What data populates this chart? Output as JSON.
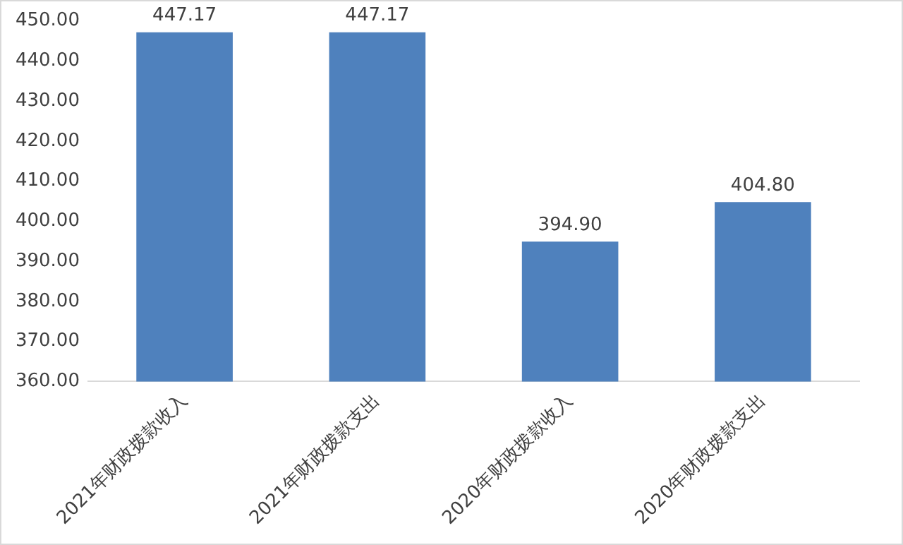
{
  "chart_data": {
    "type": "bar",
    "categories": [
      "2021年财政拨款收入",
      "2021年财政拨款支出",
      "2020年财政拨款收入",
      "2020年财政拨款支出"
    ],
    "values": [
      447.17,
      447.17,
      394.9,
      404.8
    ],
    "color": "#4f81bd",
    "value_labels": [
      "447.17",
      "447.17",
      "394.90",
      "404.80"
    ],
    "ylim": [
      360,
      450
    ],
    "yticks": [
      {
        "value": 360,
        "label": "360.00"
      },
      {
        "value": 370,
        "label": "370.00"
      },
      {
        "value": 380,
        "label": "380.00"
      },
      {
        "value": 390,
        "label": "390.00"
      },
      {
        "value": 400,
        "label": "400.00"
      },
      {
        "value": 410,
        "label": "410.00"
      },
      {
        "value": 420,
        "label": "420.00"
      },
      {
        "value": 430,
        "label": "430.00"
      },
      {
        "value": 440,
        "label": "440.00"
      },
      {
        "value": 450,
        "label": "450.00"
      }
    ],
    "grid": false,
    "legend": false
  }
}
